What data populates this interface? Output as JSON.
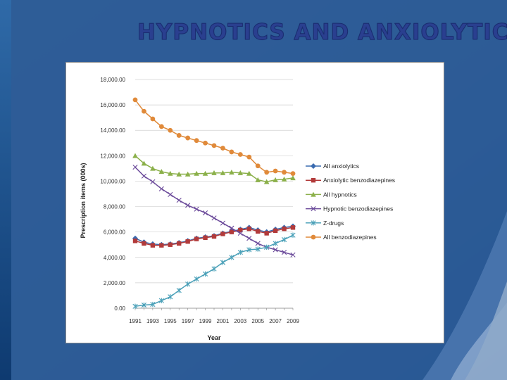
{
  "slide": {
    "title": "HYPNOTICS AND ANXIOLYTICS"
  },
  "chart_data": {
    "type": "line",
    "xlabel": "Year",
    "ylabel": "Prescription items (000s)",
    "ylim": [
      0,
      18000
    ],
    "yticks": [
      0,
      2000,
      4000,
      6000,
      8000,
      10000,
      12000,
      14000,
      16000,
      18000
    ],
    "ytick_labels": [
      "0.00",
      "2,000.00",
      "4,000.00",
      "6,000.00",
      "8,000.00",
      "10,000.00",
      "12,000.00",
      "14,000.00",
      "16,000.00",
      "18,000.00"
    ],
    "x": [
      1991,
      1992,
      1993,
      1994,
      1995,
      1996,
      1997,
      1998,
      1999,
      2000,
      2001,
      2002,
      2003,
      2004,
      2005,
      2006,
      2007,
      2008,
      2009
    ],
    "xtick_labels": [
      "1991",
      "1993",
      "1995",
      "1997",
      "1999",
      "2001",
      "2003",
      "2005",
      "2007",
      "2009"
    ],
    "grid": "horizontal",
    "legend": "right",
    "series": [
      {
        "name": "All anxiolytics",
        "color": "#3a6bb0",
        "marker": "diamond",
        "values": [
          5500,
          5200,
          5050,
          5000,
          5050,
          5150,
          5300,
          5500,
          5600,
          5700,
          5900,
          6050,
          6200,
          6350,
          6150,
          6000,
          6200,
          6350,
          6450
        ]
      },
      {
        "name": "Anxiolytic benzodiazepines",
        "color": "#b23a3a",
        "marker": "square",
        "values": [
          5300,
          5100,
          4950,
          4950,
          5000,
          5100,
          5250,
          5450,
          5550,
          5650,
          5850,
          6000,
          6150,
          6250,
          6050,
          5900,
          6100,
          6250,
          6350
        ]
      },
      {
        "name": "All hypnotics",
        "color": "#8bb04a",
        "marker": "triangle",
        "values": [
          12000,
          11400,
          11000,
          10750,
          10600,
          10550,
          10550,
          10600,
          10600,
          10650,
          10650,
          10700,
          10650,
          10600,
          10100,
          9950,
          10100,
          10150,
          10250
        ]
      },
      {
        "name": "Hypnotic benzodiazepines",
        "color": "#6b4a9a",
        "marker": "x",
        "values": [
          11100,
          10400,
          9950,
          9400,
          8950,
          8500,
          8100,
          7800,
          7500,
          7100,
          6700,
          6300,
          5900,
          5500,
          5100,
          4800,
          4600,
          4400,
          4200
        ]
      },
      {
        "name": "Z-drugs",
        "color": "#4aa0b8",
        "marker": "star",
        "values": [
          150,
          250,
          300,
          600,
          900,
          1400,
          1900,
          2300,
          2700,
          3100,
          3600,
          4000,
          4400,
          4600,
          4650,
          4800,
          5100,
          5400,
          5750
        ]
      },
      {
        "name": "All benzodiazepines",
        "color": "#e08a3a",
        "marker": "circle",
        "values": [
          16400,
          15500,
          14900,
          14300,
          14000,
          13600,
          13400,
          13200,
          13000,
          12800,
          12600,
          12300,
          12100,
          11900,
          11200,
          10700,
          10800,
          10700,
          10600
        ]
      }
    ]
  }
}
